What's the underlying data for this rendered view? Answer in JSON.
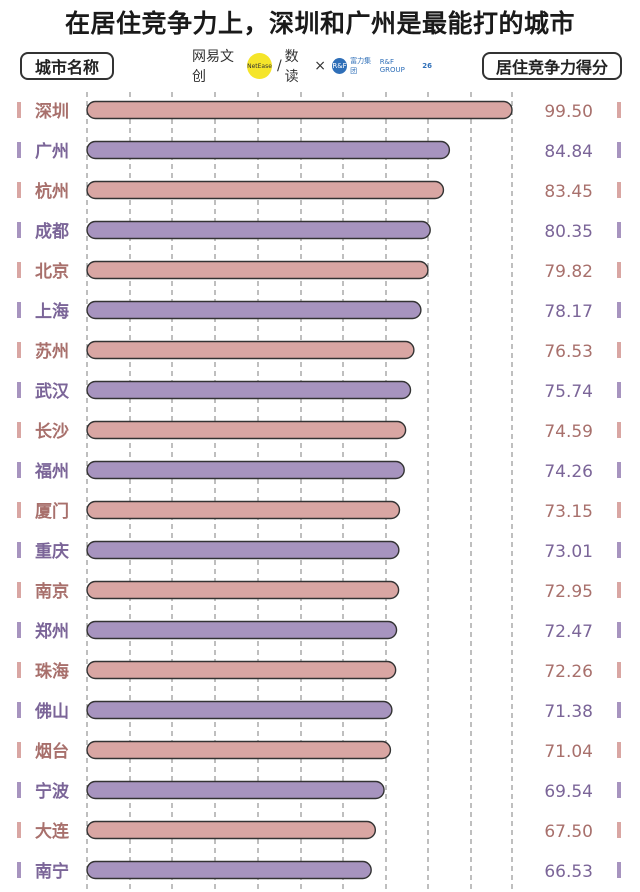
{
  "title": "在居住竞争力上，深圳和广州是最能打的城市",
  "header": {
    "left_label": "城市名称",
    "right_label": "居住竞争力得分",
    "logos": {
      "netease": "网易文创",
      "netease_small": "NetEase",
      "slash": "/",
      "shudu": "数读",
      "cross": "×",
      "fuli": "富力集团",
      "fuli_small": "R&F GROUP",
      "anniv": "26"
    }
  },
  "colors": {
    "pink": "#d9a6a3",
    "purple": "#a794bf",
    "pink_text": "#a8706c",
    "purple_text": "#7b6598",
    "grid": "#555555"
  },
  "chart_data": {
    "type": "bar",
    "orientation": "horizontal",
    "title": "在居住竞争力上，深圳和广州是最能打的城市",
    "xlabel": "居住竞争力得分",
    "ylabel": "城市名称",
    "xlim": [
      0,
      100
    ],
    "categories": [
      "深圳",
      "广州",
      "杭州",
      "成都",
      "北京",
      "上海",
      "苏州",
      "武汉",
      "长沙",
      "福州",
      "厦门",
      "重庆",
      "南京",
      "郑州",
      "珠海",
      "佛山",
      "烟台",
      "宁波",
      "大连",
      "南宁"
    ],
    "values": [
      99.5,
      84.84,
      83.45,
      80.35,
      79.82,
      78.17,
      76.53,
      75.74,
      74.59,
      74.26,
      73.15,
      73.01,
      72.95,
      72.47,
      72.26,
      71.38,
      71.04,
      69.54,
      67.5,
      66.53
    ],
    "value_labels": [
      "99.50",
      "84.84",
      "83.45",
      "80.35",
      "79.82",
      "78.17",
      "76.53",
      "75.74",
      "74.59",
      "74.26",
      "73.15",
      "73.01",
      "72.95",
      "72.47",
      "72.26",
      "71.38",
      "71.04",
      "69.54",
      "67.50",
      "66.53"
    ],
    "series_colors": [
      "pink",
      "purple"
    ],
    "grid": true
  }
}
